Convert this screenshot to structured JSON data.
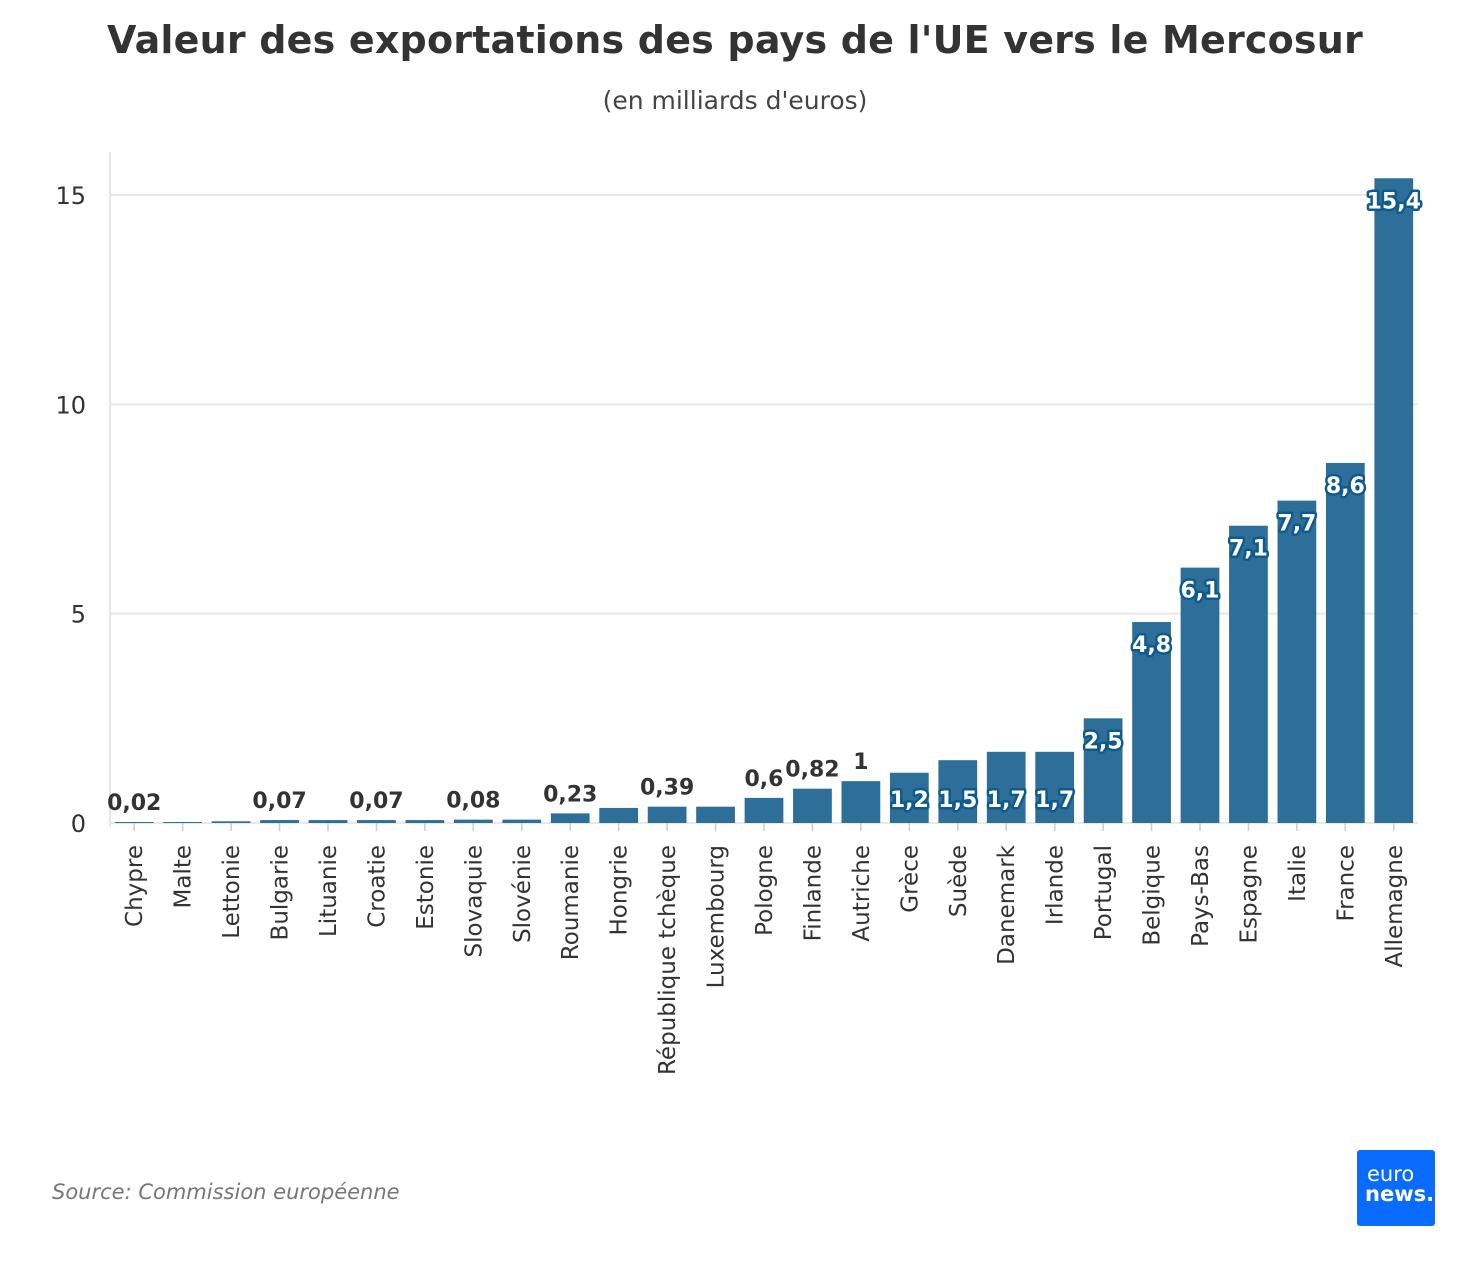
{
  "chart_data": {
    "type": "bar",
    "title": "Valeur des exportations des pays de l'UE vers le Mercosur",
    "subtitle": "(en milliards d'euros)",
    "xlabel": "",
    "ylabel": "",
    "ylim": [
      0,
      16
    ],
    "yticks": [
      0,
      5,
      10,
      15
    ],
    "grid": true,
    "bar_color": "#2e6f9a",
    "categories": [
      "Chypre",
      "Malte",
      "Lettonie",
      "Bulgarie",
      "Lituanie",
      "Croatie",
      "Estonie",
      "Slovaquie",
      "Slovénie",
      "Roumanie",
      "Hongrie",
      "République tchèque",
      "Luxembourg",
      "Pologne",
      "Finlande",
      "Autriche",
      "Grèce",
      "Suède",
      "Danemark",
      "Irlande",
      "Portugal",
      "Belgique",
      "Pays-Bas",
      "Espagne",
      "Italie",
      "France",
      "Allemagne"
    ],
    "values": [
      0.02,
      0.01,
      0.04,
      0.07,
      0.07,
      0.07,
      0.07,
      0.08,
      0.08,
      0.23,
      0.36,
      0.39,
      0.39,
      0.6,
      0.82,
      1.0,
      1.2,
      1.5,
      1.7,
      1.7,
      2.5,
      4.8,
      6.1,
      7.1,
      7.7,
      8.6,
      15.4
    ],
    "data_labels": [
      "0,02",
      "",
      "",
      "0,07",
      "",
      "0,07",
      "",
      "0,08",
      "",
      "0,23",
      "",
      "0,39",
      "",
      "0,6",
      "0,82",
      "1",
      "1,2",
      "1,5",
      "1,7",
      "1,7",
      "2,5",
      "4,8",
      "6,1",
      "7,1",
      "7,7",
      "8,6",
      "15,4"
    ]
  },
  "footer": {
    "source": "Source: Commission européenne",
    "logo_line1": "euro",
    "logo_line2": "news."
  }
}
